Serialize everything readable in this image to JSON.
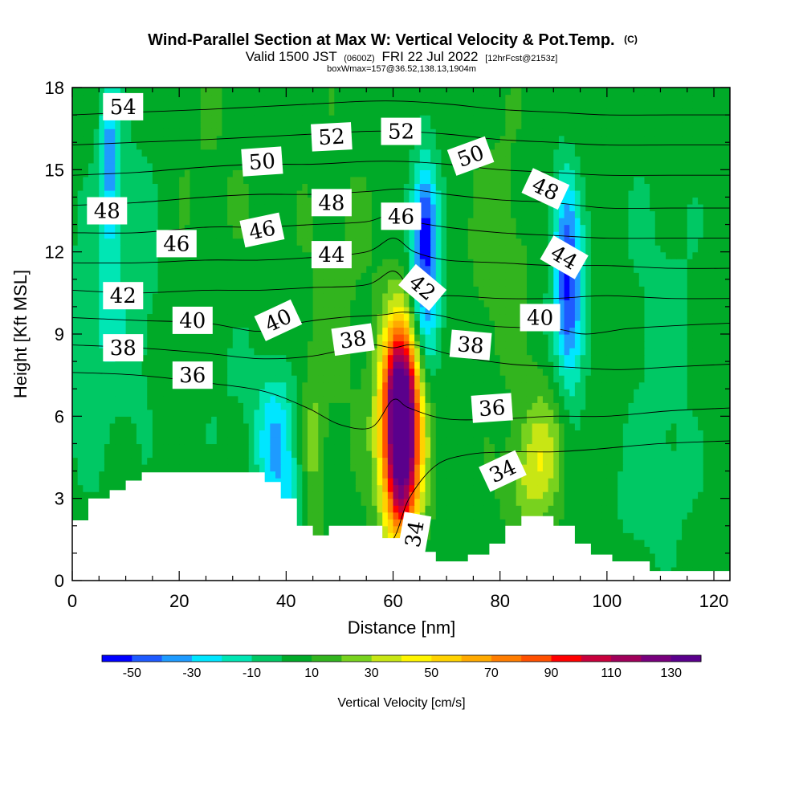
{
  "header": {
    "title_main": "Wind-Parallel Section at Max W: Vertical Velocity & Pot.Temp.",
    "title_mark": "(C)",
    "valid_a": "Valid 1500 JST",
    "valid_b": "(0600Z)",
    "valid_c": "FRI 22 Jul 2022",
    "valid_d": "[12hrFcst@2153z]",
    "box_info": "boxWmax=157@36.52,138.13,1904m"
  },
  "chart_data": {
    "type": "heatmap",
    "xlabel": "Distance [nm]",
    "ylabel": "Height [Kft MSL]",
    "xlim": [
      0,
      123
    ],
    "ylim": [
      0,
      18
    ],
    "x_ticks": [
      "0",
      "20",
      "40",
      "60",
      "80",
      "100",
      "120"
    ],
    "y_ticks": [
      "0",
      "3",
      "6",
      "9",
      "12",
      "15",
      "18"
    ],
    "x_tick_values": [
      0,
      20,
      40,
      60,
      80,
      100,
      120
    ],
    "y_tick_values": [
      0,
      3,
      6,
      9,
      12,
      15,
      18
    ],
    "colorbar": {
      "label": "Vertical Velocity [cm/s]",
      "tick_labels": [
        "-50",
        "-30",
        "-10",
        "10",
        "30",
        "50",
        "70",
        "90",
        "110",
        "130"
      ],
      "bounds": [
        -60,
        -50,
        -40,
        -30,
        -20,
        -10,
        0,
        10,
        20,
        30,
        40,
        50,
        60,
        70,
        80,
        90,
        100,
        110,
        120,
        130,
        140
      ],
      "colors": [
        "#0000ff",
        "#1e5aff",
        "#1e9bff",
        "#00e6ff",
        "#00e6b4",
        "#00c864",
        "#00aa28",
        "#32b41e",
        "#78d21e",
        "#c8e614",
        "#fff500",
        "#ffd200",
        "#ffaa00",
        "#ff7d00",
        "#ff5000",
        "#ff0000",
        "#c8003c",
        "#a0005a",
        "#78007d",
        "#5a008c"
      ]
    },
    "terrain": [
      [
        0,
        2.2
      ],
      [
        3,
        2.2
      ],
      [
        3,
        3
      ],
      [
        7,
        3
      ],
      [
        7,
        3.3
      ],
      [
        10,
        3.3
      ],
      [
        10,
        3.65
      ],
      [
        13,
        3.65
      ],
      [
        13,
        3.95
      ],
      [
        36,
        3.95
      ],
      [
        36,
        3.6
      ],
      [
        39,
        3.6
      ],
      [
        39,
        3
      ],
      [
        42,
        3
      ],
      [
        42,
        2
      ],
      [
        45,
        2
      ],
      [
        45,
        1.65
      ],
      [
        48,
        1.65
      ],
      [
        48,
        2
      ],
      [
        58,
        2
      ],
      [
        58,
        1.55
      ],
      [
        66,
        1.55
      ],
      [
        66,
        1.05
      ],
      [
        68,
        1.05
      ],
      [
        68,
        0.7
      ],
      [
        74,
        0.7
      ],
      [
        74,
        0.95
      ],
      [
        78,
        0.95
      ],
      [
        78,
        1.35
      ],
      [
        81,
        1.35
      ],
      [
        81,
        2
      ],
      [
        84,
        2
      ],
      [
        84,
        2.35
      ],
      [
        90,
        2.35
      ],
      [
        90,
        2
      ],
      [
        94,
        2
      ],
      [
        94,
        1.35
      ],
      [
        97,
        1.35
      ],
      [
        97,
        0.95
      ],
      [
        101,
        0.95
      ],
      [
        101,
        0.7
      ],
      [
        108,
        0.7
      ],
      [
        108,
        0.35
      ],
      [
        123,
        0.35
      ]
    ],
    "w_field": {
      "base": 6,
      "blobs": [
        {
          "x": 61.5,
          "y": 5.5,
          "sx": 2.6,
          "sy": 2.4,
          "a": 145
        },
        {
          "x": 61.5,
          "y": 7.5,
          "sx": 2.2,
          "sy": 1.8,
          "a": 35
        },
        {
          "x": 61.5,
          "y": 3.0,
          "sx": 2.0,
          "sy": 1.2,
          "a": 25
        },
        {
          "x": 38,
          "y": 5.0,
          "sx": 2.6,
          "sy": 1.8,
          "a": -36
        },
        {
          "x": 41,
          "y": 3.0,
          "sx": 1.8,
          "sy": 1.0,
          "a": -20
        },
        {
          "x": 66,
          "y": 11.0,
          "sx": 2.0,
          "sy": 2.4,
          "a": -50
        },
        {
          "x": 66,
          "y": 13.5,
          "sx": 1.6,
          "sy": 1.4,
          "a": -30
        },
        {
          "x": 93,
          "y": 10.0,
          "sx": 2.0,
          "sy": 2.2,
          "a": -52
        },
        {
          "x": 92,
          "y": 13.0,
          "sx": 1.8,
          "sy": 1.8,
          "a": -25
        },
        {
          "x": 7,
          "y": 15.5,
          "sx": 1.2,
          "sy": 2.4,
          "a": -36
        },
        {
          "x": 10,
          "y": 11.0,
          "sx": 5,
          "sy": 4,
          "a": -14
        },
        {
          "x": 3,
          "y": 8.0,
          "sx": 3,
          "sy": 3,
          "a": -12
        },
        {
          "x": 88,
          "y": 5.0,
          "sx": 3,
          "sy": 1.6,
          "a": 24
        },
        {
          "x": 85,
          "y": 3.5,
          "sx": 3,
          "sy": 1.2,
          "a": 18
        },
        {
          "x": 45,
          "y": 5.0,
          "sx": 1.5,
          "sy": 2.2,
          "a": 16
        },
        {
          "x": 80,
          "y": 12.0,
          "sx": 4,
          "sy": 3,
          "a": 10
        },
        {
          "x": 50,
          "y": 10.0,
          "sx": 5,
          "sy": 4,
          "a": 6
        },
        {
          "x": 110,
          "y": 9.0,
          "sx": 6,
          "sy": 5,
          "a": -9
        },
        {
          "x": 108,
          "y": 3.0,
          "sx": 5,
          "sy": 1.5,
          "a": -9
        },
        {
          "x": 25,
          "y": 15.0,
          "sx": 6,
          "sy": 3,
          "a": 4
        },
        {
          "x": 30,
          "y": 7.0,
          "sx": 6,
          "sy": 2,
          "a": -6
        }
      ]
    },
    "theta_contours": [
      {
        "level": "34",
        "points": [
          [
            55,
            0.6
          ],
          [
            60,
            1.5
          ],
          [
            63,
            3.0
          ],
          [
            68,
            4.2
          ],
          [
            74,
            4.6
          ],
          [
            82,
            4.7
          ],
          [
            90,
            4.7
          ],
          [
            98,
            4.8
          ],
          [
            110,
            5.0
          ],
          [
            123,
            5.1
          ]
        ]
      },
      {
        "level": "36",
        "points": [
          [
            0,
            7.6
          ],
          [
            12,
            7.5
          ],
          [
            26,
            7.2
          ],
          [
            36,
            6.9
          ],
          [
            44,
            6.3
          ],
          [
            50,
            5.7
          ],
          [
            56,
            5.6
          ],
          [
            60,
            6.6
          ],
          [
            63,
            6.3
          ],
          [
            70,
            5.9
          ],
          [
            80,
            5.9
          ],
          [
            90,
            6.0
          ],
          [
            100,
            6.0
          ],
          [
            112,
            6.2
          ],
          [
            123,
            6.3
          ]
        ]
      },
      {
        "level": "38",
        "points": [
          [
            0,
            8.6
          ],
          [
            12,
            8.5
          ],
          [
            25,
            8.3
          ],
          [
            35,
            8.1
          ],
          [
            45,
            8.2
          ],
          [
            55,
            8.6
          ],
          [
            60,
            8.5
          ],
          [
            64,
            8.6
          ],
          [
            72,
            8.2
          ],
          [
            82,
            7.9
          ],
          [
            92,
            7.8
          ],
          [
            102,
            7.7
          ],
          [
            112,
            7.8
          ],
          [
            123,
            7.9
          ]
        ]
      },
      {
        "level": "40",
        "points": [
          [
            0,
            9.6
          ],
          [
            12,
            9.5
          ],
          [
            25,
            9.4
          ],
          [
            35,
            9.1
          ],
          [
            42,
            9.4
          ],
          [
            50,
            9.6
          ],
          [
            58,
            9.7
          ],
          [
            62,
            9.8
          ],
          [
            68,
            9.7
          ],
          [
            78,
            9.3
          ],
          [
            90,
            9.2
          ],
          [
            96,
            9.0
          ],
          [
            104,
            9.2
          ],
          [
            112,
            9.3
          ],
          [
            123,
            9.4
          ]
        ]
      },
      {
        "level": "42",
        "points": [
          [
            0,
            10.6
          ],
          [
            12,
            10.5
          ],
          [
            25,
            10.6
          ],
          [
            35,
            10.6
          ],
          [
            45,
            10.7
          ],
          [
            55,
            10.8
          ],
          [
            60,
            11.3
          ],
          [
            63,
            10.7
          ],
          [
            66,
            10.2
          ],
          [
            70,
            10.4
          ],
          [
            80,
            10.3
          ],
          [
            90,
            10.3
          ],
          [
            100,
            10.4
          ],
          [
            112,
            10.3
          ],
          [
            123,
            10.3
          ]
        ]
      },
      {
        "level": "44",
        "points": [
          [
            0,
            11.6
          ],
          [
            12,
            11.6
          ],
          [
            25,
            11.7
          ],
          [
            35,
            11.7
          ],
          [
            45,
            11.8
          ],
          [
            55,
            12.0
          ],
          [
            60,
            12.5
          ],
          [
            64,
            12.0
          ],
          [
            70,
            11.7
          ],
          [
            80,
            11.6
          ],
          [
            90,
            11.5
          ],
          [
            100,
            11.5
          ],
          [
            112,
            11.4
          ],
          [
            123,
            11.4
          ]
        ]
      },
      {
        "level": "46",
        "points": [
          [
            0,
            12.7
          ],
          [
            12,
            12.7
          ],
          [
            25,
            12.9
          ],
          [
            35,
            12.9
          ],
          [
            45,
            13.0
          ],
          [
            55,
            13.1
          ],
          [
            60,
            13.4
          ],
          [
            64,
            13.1
          ],
          [
            70,
            12.9
          ],
          [
            80,
            12.7
          ],
          [
            90,
            12.6
          ],
          [
            100,
            12.5
          ],
          [
            112,
            12.5
          ],
          [
            123,
            12.5
          ]
        ]
      },
      {
        "level": "48",
        "points": [
          [
            0,
            13.7
          ],
          [
            12,
            13.8
          ],
          [
            25,
            14.0
          ],
          [
            35,
            14.1
          ],
          [
            45,
            14.1
          ],
          [
            55,
            14.2
          ],
          [
            62,
            14.3
          ],
          [
            70,
            14.1
          ],
          [
            80,
            13.9
          ],
          [
            90,
            13.8
          ],
          [
            100,
            13.6
          ],
          [
            112,
            13.6
          ],
          [
            123,
            13.6
          ]
        ]
      },
      {
        "level": "50",
        "points": [
          [
            0,
            14.8
          ],
          [
            12,
            14.9
          ],
          [
            25,
            15.1
          ],
          [
            35,
            15.2
          ],
          [
            45,
            15.2
          ],
          [
            55,
            15.3
          ],
          [
            62,
            15.3
          ],
          [
            70,
            15.2
          ],
          [
            80,
            15.0
          ],
          [
            90,
            14.9
          ],
          [
            100,
            14.8
          ],
          [
            112,
            14.8
          ],
          [
            123,
            14.8
          ]
        ]
      },
      {
        "level": "52",
        "points": [
          [
            0,
            15.9
          ],
          [
            12,
            16.0
          ],
          [
            25,
            16.1
          ],
          [
            35,
            16.2
          ],
          [
            45,
            16.3
          ],
          [
            55,
            16.4
          ],
          [
            62,
            16.4
          ],
          [
            70,
            16.3
          ],
          [
            80,
            16.1
          ],
          [
            90,
            16.0
          ],
          [
            100,
            15.9
          ],
          [
            112,
            15.9
          ],
          [
            123,
            15.9
          ]
        ]
      },
      {
        "level": "54",
        "points": [
          [
            0,
            17.0
          ],
          [
            12,
            17.1
          ],
          [
            25,
            17.2
          ],
          [
            35,
            17.3
          ],
          [
            45,
            17.4
          ],
          [
            55,
            17.5
          ],
          [
            62,
            17.5
          ],
          [
            70,
            17.4
          ],
          [
            80,
            17.2
          ],
          [
            90,
            17.1
          ],
          [
            100,
            17.0
          ],
          [
            112,
            17.0
          ],
          [
            123,
            17.0
          ]
        ]
      }
    ],
    "contour_labels": [
      {
        "text": "54",
        "x": 9.5,
        "y": 17.3,
        "rot": 0
      },
      {
        "text": "52",
        "x": 48.5,
        "y": 16.2,
        "rot": -3
      },
      {
        "text": "52",
        "x": 61.5,
        "y": 16.4,
        "rot": 0
      },
      {
        "text": "50",
        "x": 35.5,
        "y": 15.3,
        "rot": -4
      },
      {
        "text": "50",
        "x": 74.5,
        "y": 15.5,
        "rot": -20
      },
      {
        "text": "48",
        "x": 6.5,
        "y": 13.5,
        "rot": 0
      },
      {
        "text": "48",
        "x": 48.5,
        "y": 13.8,
        "rot": 0
      },
      {
        "text": "48",
        "x": 88.5,
        "y": 14.3,
        "rot": 25
      },
      {
        "text": "46",
        "x": 19.5,
        "y": 12.3,
        "rot": 0
      },
      {
        "text": "46",
        "x": 35.5,
        "y": 12.8,
        "rot": -12
      },
      {
        "text": "46",
        "x": 61.5,
        "y": 13.3,
        "rot": 0
      },
      {
        "text": "44",
        "x": 48.5,
        "y": 11.9,
        "rot": 0
      },
      {
        "text": "44",
        "x": 92,
        "y": 11.8,
        "rot": 30
      },
      {
        "text": "42",
        "x": 9.5,
        "y": 10.4,
        "rot": 0
      },
      {
        "text": "42",
        "x": 65.5,
        "y": 10.7,
        "rot": 40
      },
      {
        "text": "40",
        "x": 22.5,
        "y": 9.5,
        "rot": 0
      },
      {
        "text": "40",
        "x": 38.5,
        "y": 9.5,
        "rot": -25
      },
      {
        "text": "40",
        "x": 87.5,
        "y": 9.6,
        "rot": 0
      },
      {
        "text": "38",
        "x": 9.5,
        "y": 8.5,
        "rot": 0
      },
      {
        "text": "38",
        "x": 52.5,
        "y": 8.8,
        "rot": -8
      },
      {
        "text": "38",
        "x": 74.5,
        "y": 8.6,
        "rot": 5
      },
      {
        "text": "36",
        "x": 22.5,
        "y": 7.5,
        "rot": 0
      },
      {
        "text": "36",
        "x": 78.5,
        "y": 6.3,
        "rot": -4
      },
      {
        "text": "34",
        "x": 80.5,
        "y": 4.0,
        "rot": -25
      },
      {
        "text": "34",
        "x": 64,
        "y": 1.7,
        "rot": -80
      }
    ]
  }
}
